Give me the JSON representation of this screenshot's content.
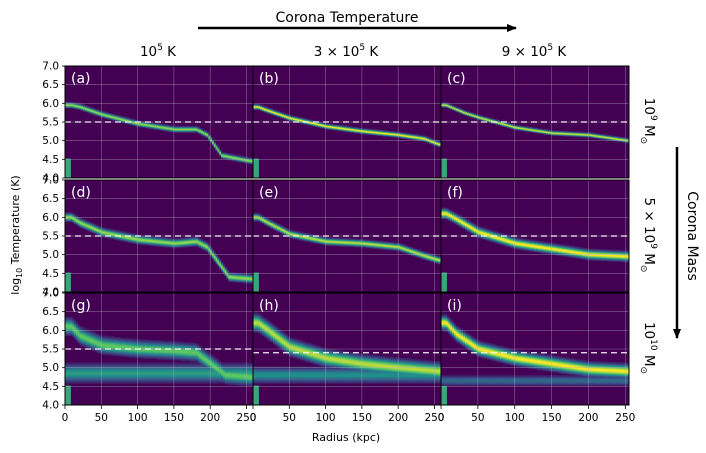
{
  "figure": {
    "top_arrow_label": "Corona Temperature",
    "right_arrow_label": "Corona Mass",
    "column_headers": [
      {
        "base": "10",
        "exp": "5",
        "suffix": " K"
      },
      {
        "base": "3 × 10",
        "exp": "5",
        "suffix": " K"
      },
      {
        "base": "9 × 10",
        "exp": "5",
        "suffix": " K"
      }
    ],
    "row_headers": [
      {
        "base": "10",
        "exp": "9",
        "suffix": " M",
        "sub": "⊙"
      },
      {
        "base": "5 × 10",
        "exp": "9",
        "suffix": " M",
        "sub": "⊙"
      },
      {
        "base": "10",
        "exp": "10",
        "suffix": " M",
        "sub": "⊙"
      }
    ],
    "colors": {
      "background": "#440154",
      "grid": "#b9b2c6",
      "dashed": "#f2f2f2",
      "ramp": [
        "#440154",
        "#3b528b",
        "#21918c",
        "#5ec962",
        "#fde725"
      ]
    }
  },
  "chart_data": {
    "type": "heatmap",
    "xlabel": "Radius (kpc)",
    "ylabel": {
      "base": "log",
      "sub": "10",
      "rest": " Temperature (K)"
    },
    "x_ticks": [
      0,
      50,
      100,
      150,
      200,
      250
    ],
    "y_ticks": [
      "4.0",
      "4.5",
      "5.0",
      "5.5",
      "6.0",
      "6.5",
      "7.0"
    ],
    "ylim": [
      4.0,
      7.0
    ],
    "grid": true,
    "panels": [
      {
        "label": "(a)",
        "xmax": 259,
        "dashed_y": 5.5,
        "ridge": [
          [
            8,
            5.95
          ],
          [
            20,
            5.9
          ],
          [
            50,
            5.7
          ],
          [
            100,
            5.45
          ],
          [
            150,
            5.3
          ],
          [
            180,
            5.3
          ],
          [
            195,
            5.15
          ],
          [
            215,
            4.6
          ],
          [
            255,
            4.45
          ]
        ],
        "spread": 0.04,
        "intensity": 0.85,
        "cloud": null
      },
      {
        "label": "(b)",
        "xmax": 259,
        "dashed_y": 5.5,
        "ridge": [
          [
            6,
            5.9
          ],
          [
            20,
            5.8
          ],
          [
            50,
            5.6
          ],
          [
            100,
            5.38
          ],
          [
            150,
            5.25
          ],
          [
            200,
            5.15
          ],
          [
            235,
            5.05
          ],
          [
            255,
            4.9
          ]
        ],
        "spread": 0.035,
        "intensity": 1.0,
        "cloud": null
      },
      {
        "label": "(c)",
        "xmax": 255,
        "dashed_y": 5.5,
        "ridge": [
          [
            6,
            5.95
          ],
          [
            30,
            5.75
          ],
          [
            50,
            5.62
          ],
          [
            100,
            5.35
          ],
          [
            150,
            5.2
          ],
          [
            200,
            5.15
          ],
          [
            252,
            5.0
          ]
        ],
        "spread": 0.03,
        "intensity": 0.95,
        "cloud": null
      },
      {
        "label": "(d)",
        "xmax": 259,
        "dashed_y": 5.5,
        "ridge": [
          [
            8,
            6.0
          ],
          [
            20,
            5.85
          ],
          [
            50,
            5.6
          ],
          [
            100,
            5.4
          ],
          [
            150,
            5.3
          ],
          [
            180,
            5.35
          ],
          [
            195,
            5.2
          ],
          [
            210,
            4.8
          ],
          [
            225,
            4.4
          ],
          [
            255,
            4.35
          ]
        ],
        "spread": 0.06,
        "intensity": 0.85,
        "cloud": null
      },
      {
        "label": "(e)",
        "xmax": 259,
        "dashed_y": 5.5,
        "ridge": [
          [
            6,
            6.0
          ],
          [
            20,
            5.85
          ],
          [
            50,
            5.55
          ],
          [
            100,
            5.35
          ],
          [
            150,
            5.3
          ],
          [
            200,
            5.2
          ],
          [
            230,
            5.0
          ],
          [
            255,
            4.85
          ]
        ],
        "spread": 0.05,
        "intensity": 0.9,
        "cloud": null
      },
      {
        "label": "(f)",
        "xmax": 255,
        "dashed_y": 5.5,
        "ridge": [
          [
            6,
            6.1
          ],
          [
            20,
            5.95
          ],
          [
            50,
            5.6
          ],
          [
            100,
            5.3
          ],
          [
            150,
            5.15
          ],
          [
            200,
            5.0
          ],
          [
            252,
            4.95
          ]
        ],
        "spread": 0.07,
        "intensity": 1.0,
        "cloud": null
      },
      {
        "label": "(g)",
        "xmax": 259,
        "dashed_y": 5.5,
        "ridge": [
          [
            8,
            6.1
          ],
          [
            20,
            5.85
          ],
          [
            50,
            5.6
          ],
          [
            100,
            5.5
          ],
          [
            150,
            5.45
          ],
          [
            180,
            5.4
          ],
          [
            200,
            5.1
          ],
          [
            220,
            4.8
          ],
          [
            255,
            4.75
          ]
        ],
        "spread": 0.12,
        "intensity": 0.75,
        "cloud": {
          "y": 4.85,
          "spread": 0.14,
          "strength": 0.55
        }
      },
      {
        "label": "(h)",
        "xmax": 259,
        "dashed_y": 5.4,
        "ridge": [
          [
            6,
            6.2
          ],
          [
            20,
            6.0
          ],
          [
            50,
            5.55
          ],
          [
            100,
            5.25
          ],
          [
            150,
            5.1
          ],
          [
            200,
            5.0
          ],
          [
            255,
            4.9
          ]
        ],
        "spread": 0.12,
        "intensity": 0.9,
        "cloud": {
          "y": 4.8,
          "spread": 0.12,
          "strength": 0.5
        }
      },
      {
        "label": "(i)",
        "xmax": 255,
        "dashed_y": 5.4,
        "ridge": [
          [
            6,
            6.2
          ],
          [
            20,
            5.9
          ],
          [
            50,
            5.5
          ],
          [
            100,
            5.25
          ],
          [
            150,
            5.1
          ],
          [
            200,
            4.95
          ],
          [
            252,
            4.9
          ]
        ],
        "spread": 0.1,
        "intensity": 1.0,
        "cloud": {
          "y": 4.65,
          "spread": 0.08,
          "strength": 0.35
        }
      }
    ]
  }
}
